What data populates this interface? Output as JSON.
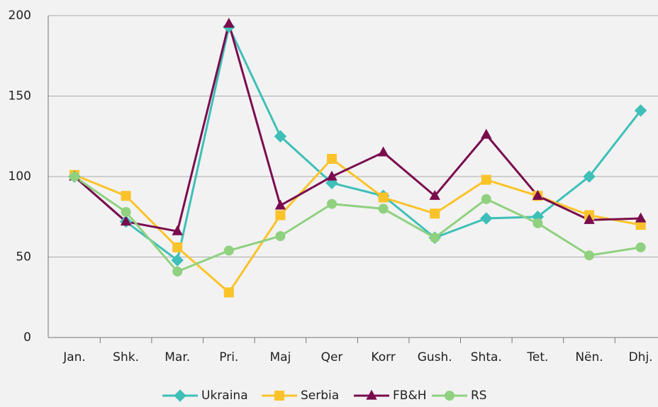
{
  "chart_data": {
    "type": "line",
    "categories": [
      "Jan.",
      "Shk.",
      "Mar.",
      "Pri.",
      "Maj",
      "Qer",
      "Korr",
      "Gush.",
      "Shta.",
      "Tet.",
      "Nën.",
      "Dhj."
    ],
    "series": [
      {
        "name": "Ukraina",
        "color": "#3ebfb8",
        "marker": "diamond",
        "values": [
          100,
          72,
          48,
          193,
          125,
          96,
          88,
          62,
          74,
          75,
          100,
          141
        ]
      },
      {
        "name": "Serbia",
        "color": "#fbc32a",
        "marker": "square",
        "values": [
          101,
          88,
          56,
          28,
          76,
          111,
          87,
          77,
          98,
          88,
          76,
          70
        ]
      },
      {
        "name": "FB&H",
        "color": "#7a0c4e",
        "marker": "triangle",
        "values": [
          100,
          72,
          66,
          195,
          82,
          100,
          115,
          88,
          126,
          88,
          73,
          74
        ]
      },
      {
        "name": "RS",
        "color": "#8fd17f",
        "marker": "circle",
        "values": [
          100,
          78,
          41,
          54,
          63,
          83,
          80,
          62,
          86,
          71,
          51,
          56
        ]
      }
    ],
    "ylim": [
      0,
      200
    ],
    "yticks": [
      0,
      50,
      100,
      150,
      200
    ],
    "grid": true,
    "legend": "bottom"
  }
}
